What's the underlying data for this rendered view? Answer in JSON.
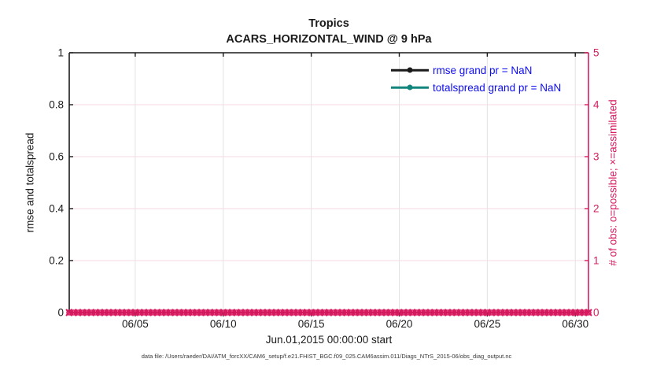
{
  "figure": {
    "caption": "data file: /Users/raeder/DAI/ATM_forcXX/CAM6_setup/f.e21.FHIST_BGC.f09_025.CAM6assim.011/Diags_NTrS_2015-06/obs_diag_output.nc"
  },
  "colors": {
    "axis_black": "#1a1a1a",
    "right_axis_pink": "#d81b60",
    "legend_text_blue": "#0d0df0",
    "grid_gray": "#e3e3e3",
    "grid_pink": "#f7d9e5",
    "caption_gray": "#3a3a3a"
  },
  "chart_data": {
    "type": "line",
    "title": "Tropics",
    "subtitle": "ACARS_HORIZONTAL_WIND @ 9 hPa",
    "xlabel": "Jun.01,2015 00:00:00 start",
    "ylabel_left": "rmse and totalspread",
    "ylabel_right": "# of obs: o=possible; ×=assimilated",
    "grid": true,
    "ylim_left": [
      0,
      1
    ],
    "yticks_left": [
      0,
      0.2,
      0.4,
      0.6,
      0.8,
      1
    ],
    "ytick_labels_left": [
      "0",
      "0.2",
      "0.4",
      "0.6",
      "0.8",
      "1"
    ],
    "ylim_right": [
      0,
      5
    ],
    "yticks_right": [
      0,
      1,
      2,
      3,
      4,
      5
    ],
    "ytick_labels_right": [
      "0",
      "1",
      "2",
      "3",
      "4",
      "5"
    ],
    "xlim_days": [
      1.25,
      30.75
    ],
    "xtick_days": [
      5,
      10,
      15,
      20,
      25,
      30
    ],
    "xtick_labels": [
      "06/05",
      "06/10",
      "06/15",
      "06/20",
      "06/25",
      "06/30"
    ],
    "series": [
      {
        "name": "rmse grand pr = NaN",
        "color": "#1a1a1a",
        "marker": "filled-circle",
        "values": null
      },
      {
        "name": "totalspread grand pr = NaN",
        "color": "#12857c",
        "marker": "filled-circle",
        "values": null
      }
    ],
    "obs_markers": {
      "color": "#d81b60",
      "possible_marker": "o",
      "assimilated_marker": "x",
      "value": 0,
      "time_range_days": [
        1.25,
        30.75
      ],
      "time_step_days": 0.25
    }
  }
}
